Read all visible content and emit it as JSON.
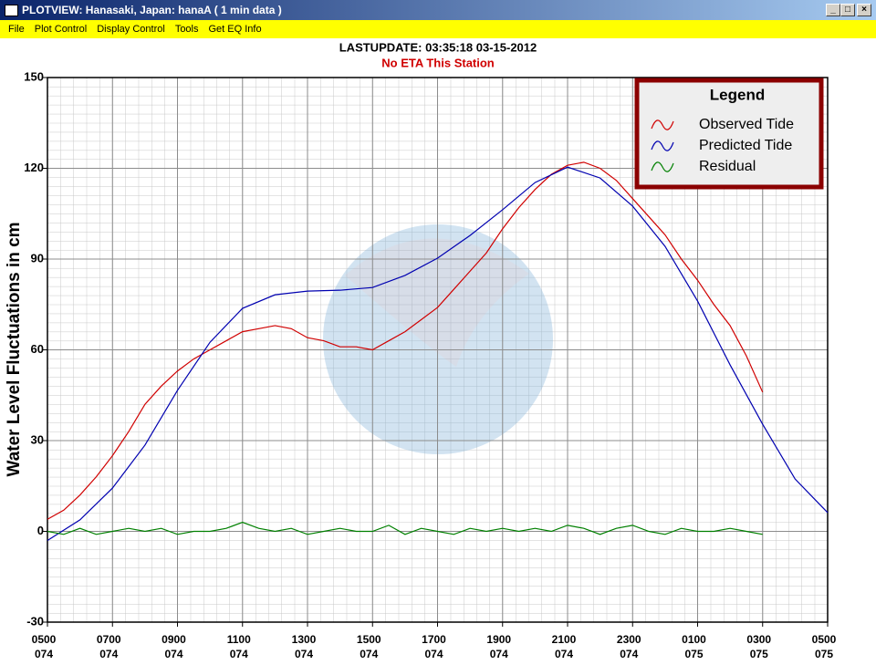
{
  "window": {
    "title": "PLOTVIEW:  Hanasaki, Japan: hanaA ( 1 min data )",
    "menu": [
      "File",
      "Plot Control",
      "Display Control",
      "Tools",
      "Get EQ Info"
    ]
  },
  "chart_data": {
    "type": "line",
    "title": "LASTUPDATE: 03:35:18  03-15-2012",
    "subtitle": "No ETA This Station",
    "y_label": "Water Level Fluctuations in cm",
    "legend_title": "Legend",
    "legend": "upper right",
    "grid": true,
    "xlim": [
      0,
      24
    ],
    "xticks": [
      {
        "value": 0,
        "label": "0500"
      },
      {
        "value": 2,
        "label": "0700"
      },
      {
        "value": 4,
        "label": "0900"
      },
      {
        "value": 6,
        "label": "1100"
      },
      {
        "value": 8,
        "label": "1300"
      },
      {
        "value": 10,
        "label": "1500"
      },
      {
        "value": 12,
        "label": "1700"
      },
      {
        "value": 14,
        "label": "1900"
      },
      {
        "value": 16,
        "label": "2100"
      },
      {
        "value": 18,
        "label": "2300"
      },
      {
        "value": 20,
        "label": "0100"
      },
      {
        "value": 22,
        "label": "0300"
      },
      {
        "value": 24,
        "label": "0500"
      }
    ],
    "x_day_labels": [
      "074",
      "074",
      "074",
      "074",
      "074",
      "074",
      "074",
      "074",
      "074",
      "074",
      "075",
      "075",
      "075"
    ],
    "ylim": [
      -30,
      150
    ],
    "yticks": [
      -30,
      0,
      30,
      60,
      90,
      120,
      150
    ],
    "series": [
      {
        "name": "Observed Tide",
        "color": "#d00000",
        "x": [
          0,
          0.5,
          1,
          1.5,
          2,
          2.5,
          3,
          3.5,
          4,
          4.5,
          5,
          5.5,
          6,
          6.5,
          7,
          7.5,
          8,
          8.5,
          9,
          9.5,
          10,
          10.5,
          11,
          11.5,
          12,
          12.5,
          13,
          13.5,
          14,
          14.5,
          15,
          15.5,
          16,
          16.5,
          17,
          17.5,
          18,
          18.5,
          19,
          19.5,
          20,
          20.5,
          21,
          21.5,
          22
        ],
        "values": [
          4,
          7,
          12,
          18,
          25,
          33,
          42,
          48,
          53,
          57,
          60,
          63,
          66,
          67,
          68,
          67,
          64,
          63,
          61,
          61,
          60,
          63,
          66,
          70,
          74,
          80,
          86,
          92,
          100,
          107,
          113,
          118,
          121,
          122,
          120,
          116,
          110,
          104,
          98,
          90,
          83,
          75,
          68,
          58,
          46
        ]
      },
      {
        "name": "Predicted Tide",
        "color": "#0000b0",
        "x": [
          0,
          1,
          2,
          3,
          4,
          5,
          6,
          7,
          8,
          9,
          10,
          11,
          12,
          13,
          14,
          15,
          16,
          17,
          18,
          19,
          20,
          21,
          22,
          23,
          24
        ],
        "values": [
          -3,
          3.8,
          14.3,
          28.5,
          46.6,
          62.5,
          73.7,
          78.2,
          79.4,
          79.7,
          80.6,
          84.6,
          90.3,
          97.8,
          106.3,
          115.3,
          120.4,
          116.8,
          107.5,
          94.2,
          76.1,
          55,
          35.4,
          17.3,
          6.2
        ]
      },
      {
        "name": "Residual",
        "color": "#008000",
        "x": [
          0,
          0.5,
          1,
          1.5,
          2,
          2.5,
          3,
          3.5,
          4,
          4.5,
          5,
          5.5,
          6,
          6.5,
          7,
          7.5,
          8,
          8.5,
          9,
          9.5,
          10,
          10.5,
          11,
          11.5,
          12,
          12.5,
          13,
          13.5,
          14,
          14.5,
          15,
          15.5,
          16,
          16.5,
          17,
          17.5,
          18,
          18.5,
          19,
          19.5,
          20,
          20.5,
          21,
          21.5,
          22
        ],
        "values": [
          0,
          -1,
          1,
          -1,
          0,
          1,
          0,
          1,
          -1,
          0,
          0,
          1,
          3,
          1,
          0,
          1,
          -1,
          0,
          1,
          0,
          0,
          2,
          -1,
          1,
          0,
          -1,
          1,
          0,
          1,
          0,
          1,
          0,
          2,
          1,
          -1,
          1,
          2,
          0,
          -1,
          1,
          0,
          0,
          1,
          0,
          -1
        ]
      }
    ]
  }
}
